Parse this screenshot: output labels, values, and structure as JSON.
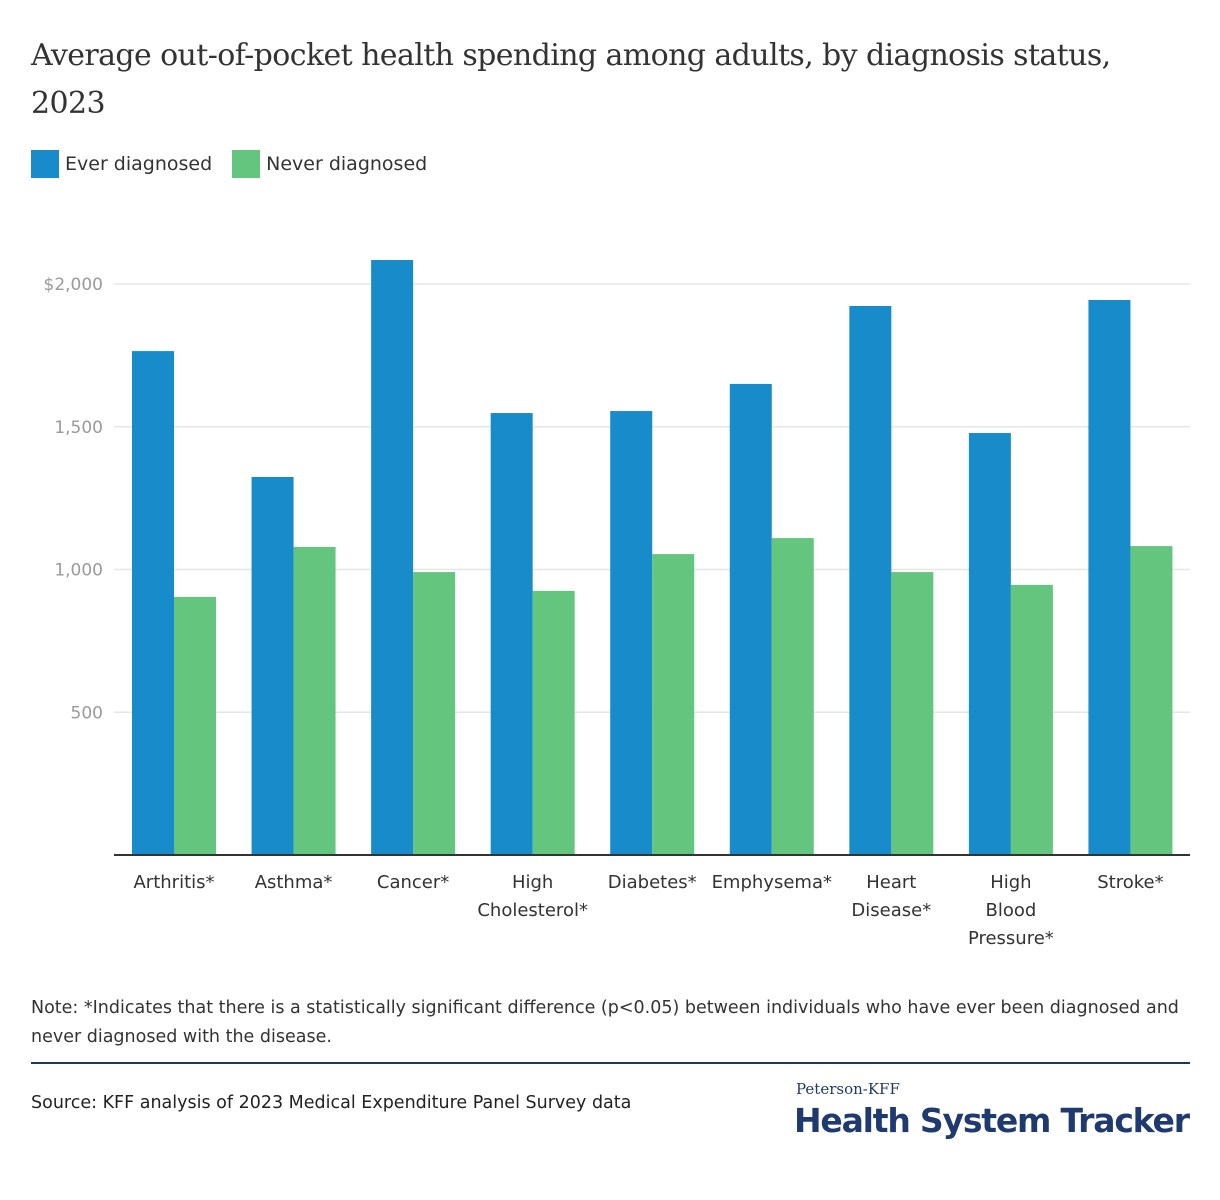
{
  "title": "Average out-of-pocket health spending among adults, by diagnosis status, 2023",
  "legend": [
    {
      "label": "Ever diagnosed",
      "color": "#188bcb"
    },
    {
      "label": "Never diagnosed",
      "color": "#64c57e"
    }
  ],
  "chart_data": {
    "type": "bar",
    "title": "Average out-of-pocket health spending among adults, by diagnosis status, 2023",
    "xlabel": "",
    "ylabel": "",
    "ylim": [
      0,
      2000
    ],
    "yticks": [
      500,
      1000,
      1500,
      2000
    ],
    "ytick_labels": [
      "500",
      "1,000",
      "1,500",
      "$2,000"
    ],
    "grid": true,
    "legend_position": "top-left",
    "categories": [
      [
        "Arthritis*"
      ],
      [
        "Asthma*"
      ],
      [
        "Cancer*"
      ],
      [
        "High",
        "Cholesterol*"
      ],
      [
        "Diabetes*"
      ],
      [
        "Emphysema*"
      ],
      [
        "Heart",
        "Disease*"
      ],
      [
        "High",
        "Blood",
        "Pressure*"
      ],
      [
        "Stroke*"
      ]
    ],
    "series": [
      {
        "name": "Ever diagnosed",
        "color": "#188bcb",
        "values": [
          1765,
          1324,
          2084,
          1548,
          1555,
          1650,
          1923,
          1478,
          1944
        ]
      },
      {
        "name": "Never diagnosed",
        "color": "#64c57e",
        "values": [
          904,
          1079,
          991,
          925,
          1054,
          1110,
          991,
          946,
          1082
        ]
      }
    ]
  },
  "note": "Note: *Indicates that there is a statistically significant difference (p<0.05) between individuals who have ever been diagnosed and never diagnosed with the disease.",
  "source": "Source: KFF analysis of 2023 Medical Expenditure Panel Survey data",
  "logo": {
    "small": "Peterson-KFF",
    "big": "Health System Tracker"
  }
}
